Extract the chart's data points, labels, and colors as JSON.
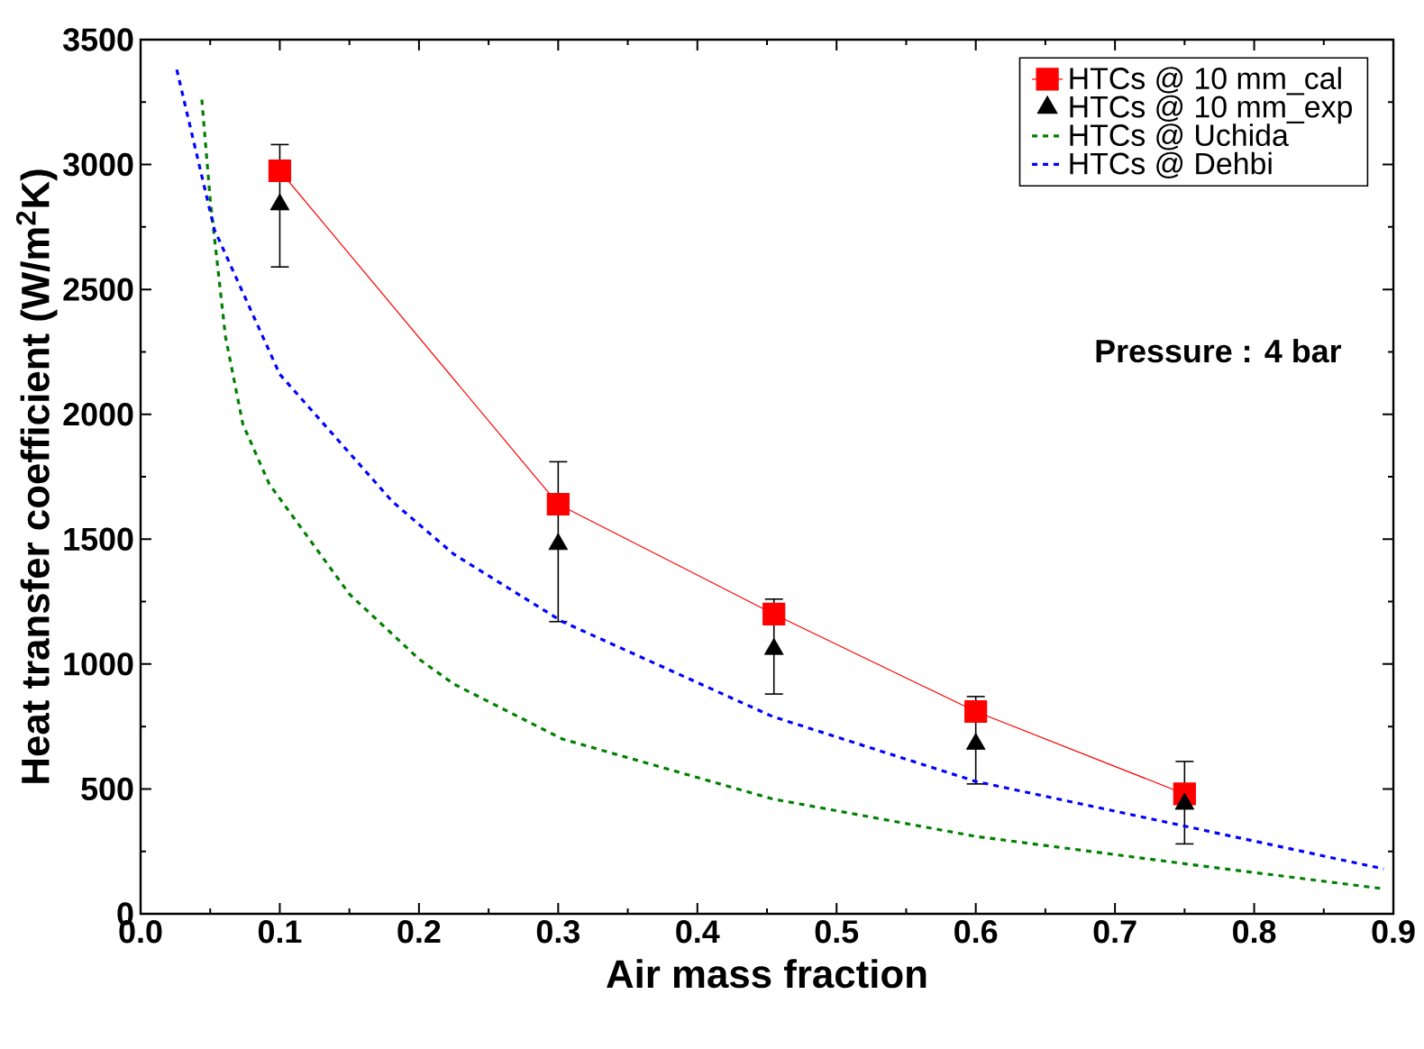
{
  "chart_data": {
    "type": "line",
    "xlabel": "Air mass fraction",
    "ylabel": "Heat transfer coefficient (W/m$^{2}$K)",
    "xlim": [
      0.0,
      0.9
    ],
    "ylim": [
      0,
      3500
    ],
    "xticks": [
      {
        "value": 0.0,
        "label": "0.0"
      },
      0.1,
      0.2,
      0.3,
      0.4,
      0.5,
      0.6,
      0.7,
      0.8,
      0.9
    ],
    "yticks": [
      0,
      500,
      1000,
      1500,
      2000,
      2500,
      3000,
      3500
    ],
    "grid": false,
    "legend": "top right",
    "annotations": [
      "Pressure : 4 bar"
    ],
    "series": [
      {
        "name": "HTCs @ 10 mm_cal",
        "color": "#ff0000",
        "marker": "square",
        "line_style": "solid",
        "x": [
          0.1,
          0.3,
          0.455,
          0.6,
          0.75
        ],
        "values": [
          2975,
          1640,
          1200,
          810,
          480
        ]
      },
      {
        "name": "HTCs @ 10 mm_exp",
        "type": "scatter",
        "color": "#000000",
        "marker": "triangle",
        "x": [
          0.1,
          0.3,
          0.455,
          0.6,
          0.75
        ],
        "values": [
          2840,
          1480,
          1060,
          680,
          440
        ],
        "errors": [
          [
            2590,
            3080
          ],
          [
            1170,
            1810
          ],
          [
            880,
            1260
          ],
          [
            520,
            870
          ],
          [
            280,
            610
          ]
        ]
      },
      {
        "name": "HTCs @ Uchida",
        "color": "#008000",
        "marker": "none",
        "line_style": "dashed",
        "x": [
          0.044,
          0.05,
          0.061,
          0.0735,
          0.0925,
          0.15,
          0.2,
          0.225,
          0.303,
          0.454,
          0.6,
          0.751,
          0.893
        ],
        "values": [
          3260,
          2860,
          2310,
          1960,
          1720,
          1280,
          1020,
          920,
          700,
          460,
          310,
          200,
          100
        ]
      },
      {
        "name": "HTCs @ Dehbi",
        "color": "#0000ff",
        "marker": "none",
        "line_style": "dashed",
        "x": [
          0.026,
          0.053,
          0.1,
          0.181,
          0.225,
          0.303,
          0.454,
          0.6,
          0.751,
          0.893
        ],
        "values": [
          3380,
          2740,
          2160,
          1650,
          1440,
          1170,
          790,
          530,
          350,
          180
        ]
      }
    ]
  }
}
